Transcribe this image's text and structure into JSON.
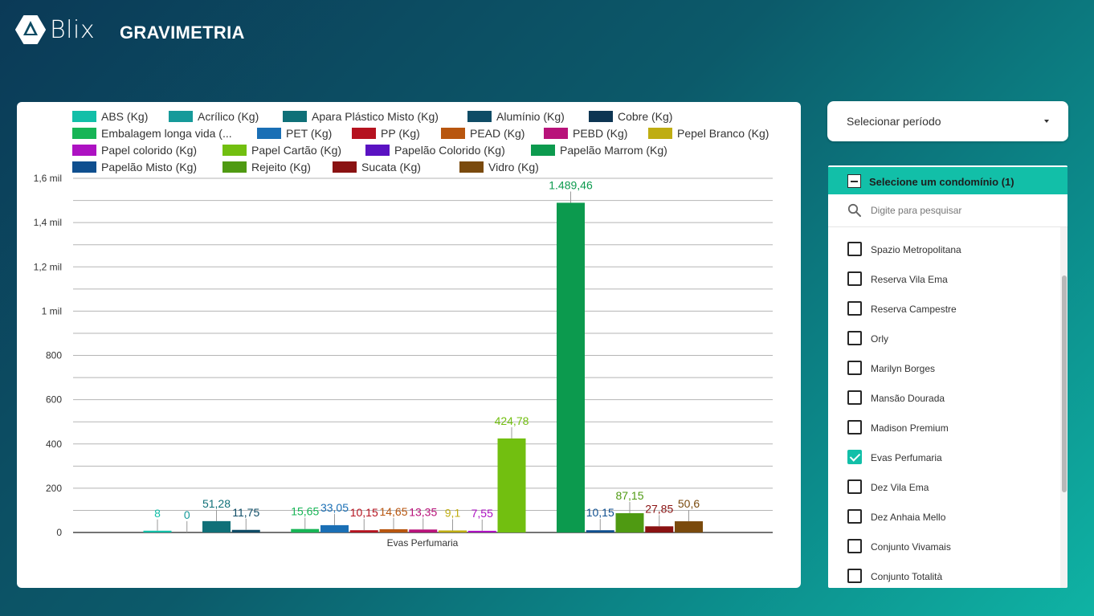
{
  "app": {
    "brand": "Blix",
    "title": "GRAVIMETRIA"
  },
  "period": {
    "label": "Selecionar período"
  },
  "condo_filter": {
    "header": "Selecione um condomínio (1)",
    "search_placeholder": "Digite para pesquisar",
    "items": [
      {
        "label": "Spazio Metropolitana",
        "checked": false
      },
      {
        "label": "Reserva Vila Ema",
        "checked": false
      },
      {
        "label": "Reserva Campestre",
        "checked": false
      },
      {
        "label": "Orly",
        "checked": false
      },
      {
        "label": "Marilyn Borges",
        "checked": false
      },
      {
        "label": "Mansão Dourada",
        "checked": false
      },
      {
        "label": "Madison Premium",
        "checked": false
      },
      {
        "label": "Evas Perfumaria",
        "checked": true
      },
      {
        "label": "Dez Vila Ema",
        "checked": false
      },
      {
        "label": "Dez Anhaia Mello",
        "checked": false
      },
      {
        "label": "Conjunto Vivamais",
        "checked": false
      },
      {
        "label": "Conjunto Totalità",
        "checked": false
      }
    ]
  },
  "colors": {
    "accent": "#12bfa8",
    "background_start": "#0b3a57",
    "background_end": "#0fb3a4"
  },
  "chart_data": {
    "type": "bar",
    "categories": [
      "Evas Perfumaria"
    ],
    "ylim": [
      0,
      1600
    ],
    "yticks": [
      {
        "value": 0,
        "label": "0"
      },
      {
        "value": 200,
        "label": "200"
      },
      {
        "value": 400,
        "label": "400"
      },
      {
        "value": 600,
        "label": "600"
      },
      {
        "value": 800,
        "label": "800"
      },
      {
        "value": 1000,
        "label": "1 mil"
      },
      {
        "value": 1200,
        "label": "1,2 mil"
      },
      {
        "value": 1400,
        "label": "1,4 mil"
      },
      {
        "value": 1600,
        "label": "1,6 mil"
      }
    ],
    "grid": true,
    "legend_position": "top",
    "series": [
      {
        "name": "ABS (Kg)",
        "legend_label": "ABS (Kg)",
        "color": "#12bfa8",
        "values": [
          8
        ],
        "label": "8"
      },
      {
        "name": "Acrílico (Kg)",
        "legend_label": "Acrílico (Kg)",
        "color": "#169a9a",
        "values": [
          0
        ],
        "label": "0"
      },
      {
        "name": "Apara Plástico Misto (Kg)",
        "legend_label": "Apara Plástico Misto (Kg)",
        "color": "#0f7078",
        "values": [
          51.28
        ],
        "label": "51,28"
      },
      {
        "name": "Alumínio (Kg)",
        "legend_label": "Alumínio (Kg)",
        "color": "#0f4c66",
        "values": [
          11.75
        ],
        "label": "11,75"
      },
      {
        "name": "Cobre (Kg)",
        "legend_label": "Cobre (Kg)",
        "color": "#0d3553",
        "values": [
          0
        ],
        "label": ""
      },
      {
        "name": "Embalagem longa vida (Kg)",
        "legend_label": "Embalagem longa vida (...",
        "color": "#17b556",
        "values": [
          15.65
        ],
        "label": "15,65"
      },
      {
        "name": "PET (Kg)",
        "legend_label": "PET (Kg)",
        "color": "#1a6fb5",
        "values": [
          33.05
        ],
        "label": "33,05"
      },
      {
        "name": "PP (Kg)",
        "legend_label": "PP (Kg)",
        "color": "#b5121f",
        "values": [
          10.15
        ],
        "label": "10,15"
      },
      {
        "name": "PEAD (Kg)",
        "legend_label": "PEAD (Kg)",
        "color": "#b8560f",
        "values": [
          14.65
        ],
        "label": "14,65"
      },
      {
        "name": "PEBD (Kg)",
        "legend_label": "PEBD (Kg)",
        "color": "#b8127a",
        "values": [
          13.35
        ],
        "label": "13,35"
      },
      {
        "name": "Pepel Branco (Kg)",
        "legend_label": "Pepel Branco (Kg)",
        "color": "#bfad12",
        "values": [
          9.1
        ],
        "label": "9,1"
      },
      {
        "name": "Papel colorido (Kg)",
        "legend_label": "Papel colorido (Kg)",
        "color": "#ad12c2",
        "values": [
          7.55
        ],
        "label": "7,55"
      },
      {
        "name": "Papel Cartão (Kg)",
        "legend_label": "Papel Cartão (Kg)",
        "color": "#72bf10",
        "values": [
          424.78
        ],
        "label": "424,78"
      },
      {
        "name": "Papelão Colorido (Kg)",
        "legend_label": "Papelão Colorido (Kg)",
        "color": "#5a12c2",
        "values": [
          0
        ],
        "label": ""
      },
      {
        "name": "Papelão Marrom (Kg)",
        "legend_label": "Papelão Marrom (Kg)",
        "color": "#0c9a4e",
        "values": [
          1489.46
        ],
        "label": "1.489,46"
      },
      {
        "name": "Papelão Misto (Kg)",
        "legend_label": "Papelão Misto (Kg)",
        "color": "#0f4f8f",
        "values": [
          10.15
        ],
        "label": "10,15"
      },
      {
        "name": "Rejeito (Kg)",
        "legend_label": "Rejeito (Kg)",
        "color": "#4f9a12",
        "values": [
          87.15
        ],
        "label": "87,15"
      },
      {
        "name": "Sucata (Kg)",
        "legend_label": "Sucata (Kg)",
        "color": "#8a1212",
        "values": [
          27.85
        ],
        "label": "27,85"
      },
      {
        "name": "Vidro (Kg)",
        "legend_label": "Vidro (Kg)",
        "color": "#7a4a0d",
        "values": [
          50.6
        ],
        "label": "50,6"
      }
    ]
  }
}
